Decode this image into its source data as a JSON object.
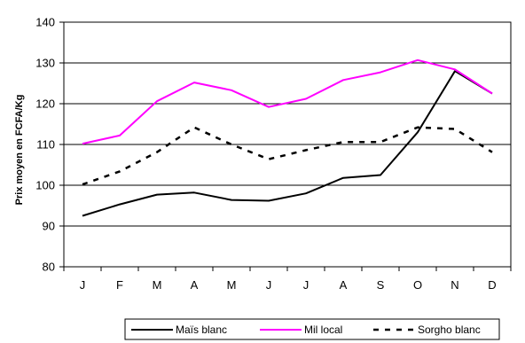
{
  "chart_data": {
    "type": "line",
    "title": "",
    "xlabel": "",
    "ylabel": "Prix moyen en FCFA/Kg",
    "categories": [
      "J",
      "F",
      "M",
      "A",
      "M",
      "J",
      "J",
      "A",
      "S",
      "O",
      "N",
      "D"
    ],
    "ylim": [
      80,
      140
    ],
    "yticks": [
      80,
      90,
      100,
      110,
      120,
      130,
      140
    ],
    "grid": "horizontal",
    "legend_position": "bottom",
    "series": [
      {
        "name": "Maïs blanc",
        "color": "#000000",
        "style": "solid",
        "values": [
          92.5,
          95.3,
          97.7,
          98.2,
          96.4,
          96.2,
          98.0,
          101.8,
          102.5,
          113.0,
          128.0,
          122.5
        ]
      },
      {
        "name": "Mil local",
        "color": "#ff00ff",
        "style": "solid",
        "values": [
          110.2,
          112.2,
          120.6,
          125.2,
          123.3,
          119.2,
          121.2,
          125.8,
          127.7,
          130.7,
          128.4,
          122.5
        ]
      },
      {
        "name": "Sorgho blanc",
        "color": "#000000",
        "style": "dashed",
        "values": [
          100.2,
          103.4,
          108.1,
          114.2,
          110.0,
          106.4,
          108.6,
          110.6,
          110.6,
          114.2,
          113.8,
          108.1
        ]
      }
    ]
  }
}
